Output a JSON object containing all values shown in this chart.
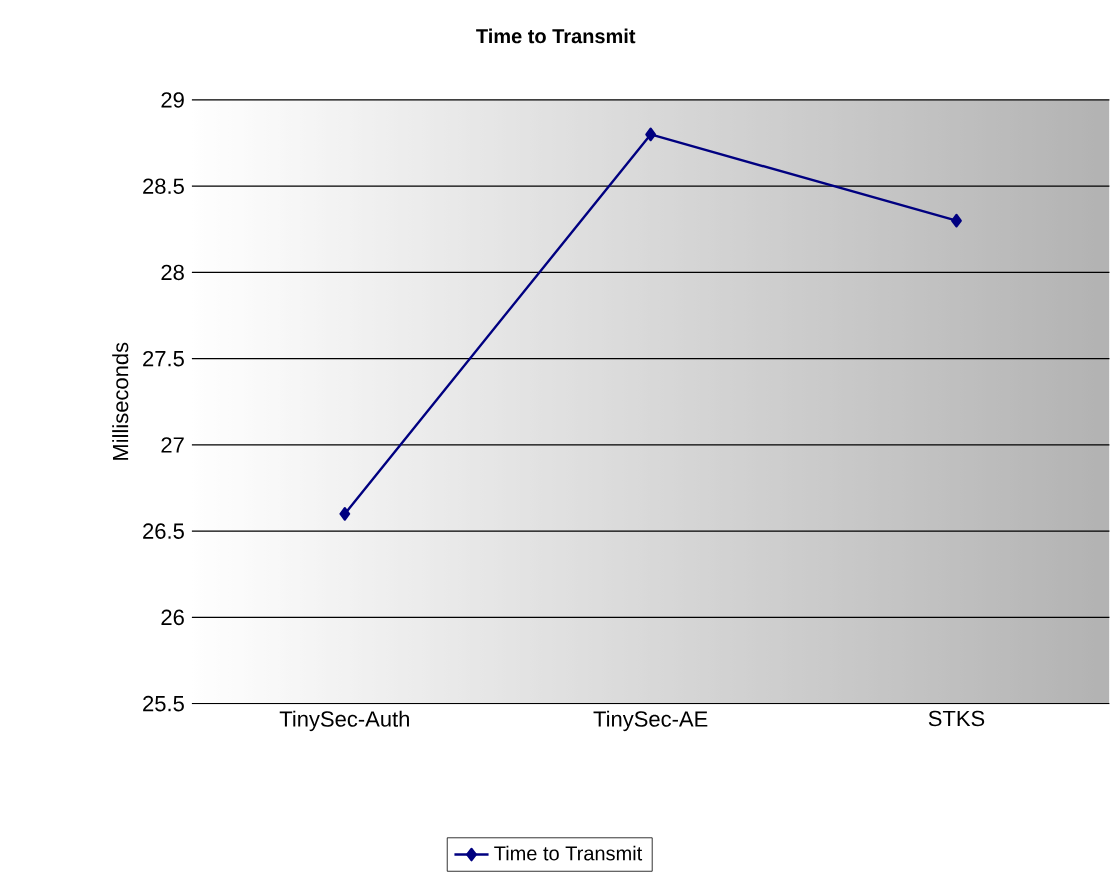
{
  "chart_data": {
    "type": "line",
    "title": "Time to Transmit",
    "ylabel": "Milliseconds",
    "categories": [
      "TinySec-Auth",
      "TinySec-AE",
      "STKS"
    ],
    "series": [
      {
        "name": "Time to Transmit",
        "color": "#000080",
        "values": [
          26.6,
          28.8,
          28.3
        ]
      }
    ],
    "ylim": [
      25.5,
      29
    ],
    "yticks": [
      25.5,
      26,
      26.5,
      27,
      27.5,
      28,
      28.5,
      29
    ],
    "grid": "y",
    "legend": "bottom",
    "marker": "diamond",
    "line_style": "solid"
  }
}
